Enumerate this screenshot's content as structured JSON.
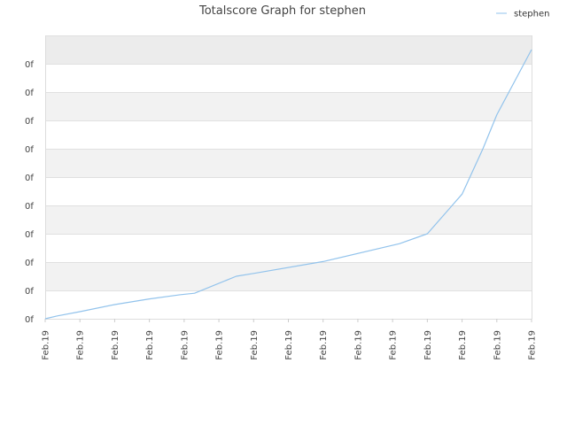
{
  "chart_data": {
    "type": "line",
    "title": "Totalscore Graph for stephen",
    "xlabel": "",
    "ylabel": "",
    "grid": true,
    "legend_position": "top-right",
    "x_tick_labels": [
      "Feb.19",
      "Feb.19",
      "Feb.19",
      "Feb.19",
      "Feb.19",
      "Feb.19",
      "Feb.19",
      "Feb.19",
      "Feb.19",
      "Feb.19",
      "Feb.19",
      "Feb.19",
      "Feb.19",
      "Feb.19",
      "Feb.19"
    ],
    "y_tick_labels": [
      "0f",
      "0f",
      "0f",
      "0f",
      "0f",
      "0f",
      "0f",
      "0f",
      "0f",
      "0f"
    ],
    "y_tick_values": [
      0,
      1,
      2,
      3,
      4,
      5,
      6,
      7,
      8,
      9
    ],
    "ylim": [
      0,
      10
    ],
    "band_colors": [
      "#ffffff",
      "#f2f2f2"
    ],
    "top_band_color": "#ececec",
    "series": [
      {
        "name": "stephen",
        "color": "#92c3ec",
        "x": [
          0,
          0.35,
          1.0,
          2.0,
          3.0,
          3.9,
          4.3,
          5.5,
          6.0,
          8.0,
          10.2,
          11.0,
          12.0,
          12.6,
          13.0,
          14.0
        ],
        "y": [
          0,
          0.1,
          0.25,
          0.5,
          0.7,
          0.85,
          0.9,
          1.5,
          1.6,
          2.02,
          2.65,
          3.0,
          4.4,
          6.0,
          7.2,
          9.5
        ]
      }
    ]
  }
}
